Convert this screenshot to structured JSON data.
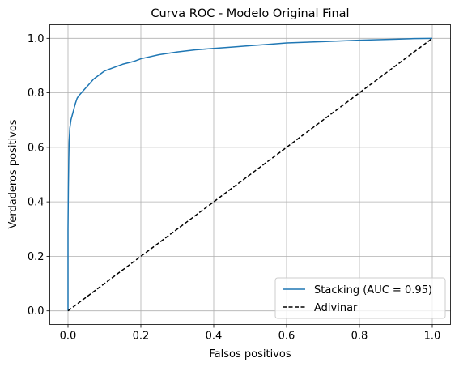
{
  "chart_data": {
    "type": "line",
    "title": "Curva ROC - Modelo Original Final",
    "xlabel": "Falsos positivos",
    "ylabel": "Verdaderos positivos",
    "xlim": [
      -0.05,
      1.05
    ],
    "ylim": [
      -0.05,
      1.05
    ],
    "xticks": [
      0.0,
      0.2,
      0.4,
      0.6,
      0.8,
      1.0
    ],
    "yticks": [
      0.0,
      0.2,
      0.4,
      0.6,
      0.8,
      1.0
    ],
    "xtick_labels": [
      "0.0",
      "0.2",
      "0.4",
      "0.6",
      "0.8",
      "1.0"
    ],
    "ytick_labels": [
      "0.0",
      "0.2",
      "0.4",
      "0.6",
      "0.8",
      "1.0"
    ],
    "grid": true,
    "legend_position": "lower-right",
    "series": [
      {
        "name": "Stacking (AUC = 0.95)",
        "color": "#1f77b4",
        "style": "solid",
        "x": [
          0.0,
          0.0,
          0.001,
          0.002,
          0.003,
          0.005,
          0.008,
          0.012,
          0.016,
          0.02,
          0.025,
          0.03,
          0.04,
          0.05,
          0.06,
          0.07,
          0.08,
          0.1,
          0.12,
          0.15,
          0.18,
          0.2,
          0.25,
          0.3,
          0.35,
          0.4,
          0.45,
          0.5,
          0.55,
          0.6,
          0.7,
          0.8,
          0.9,
          0.95,
          1.0
        ],
        "y": [
          0.0,
          0.3,
          0.45,
          0.55,
          0.62,
          0.67,
          0.7,
          0.72,
          0.74,
          0.76,
          0.78,
          0.79,
          0.805,
          0.82,
          0.835,
          0.85,
          0.86,
          0.88,
          0.89,
          0.905,
          0.915,
          0.925,
          0.94,
          0.95,
          0.958,
          0.963,
          0.968,
          0.973,
          0.978,
          0.983,
          0.988,
          0.993,
          0.997,
          0.999,
          1.0
        ]
      },
      {
        "name": "Adivinar",
        "color": "#000000",
        "style": "dashed",
        "x": [
          0.0,
          1.0
        ],
        "y": [
          0.0,
          1.0
        ]
      }
    ]
  }
}
